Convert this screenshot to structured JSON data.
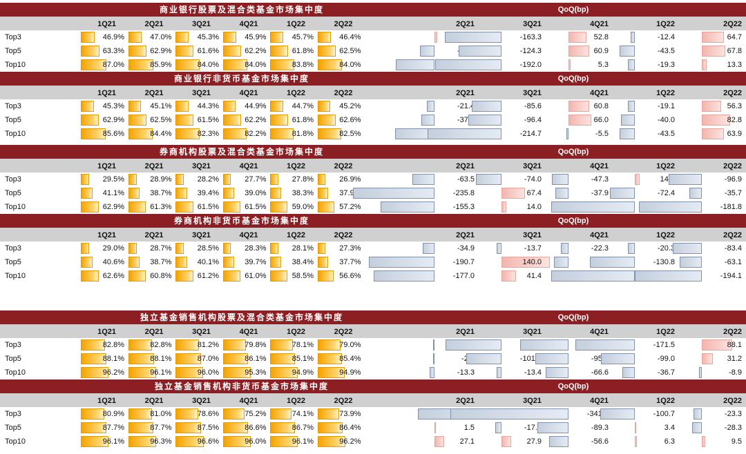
{
  "colors": {
    "title_band": "#8b1f24",
    "header_band": "#d0d0d0",
    "share_bar": "#f4a300",
    "qoq_negative": "#c4cfdd",
    "qoq_positive": "#f2b6ae"
  },
  "chart_data": [
    {
      "type": "table",
      "title": "商业银行股票及混合类基金市场集中度",
      "qoq_title": "QoQ(bp)",
      "periods": [
        "1Q21",
        "2Q21",
        "3Q21",
        "4Q21",
        "1Q22",
        "2Q22"
      ],
      "qoq_periods": [
        "2Q21",
        "3Q21",
        "4Q21",
        "1Q22",
        "2Q22"
      ],
      "rows": [
        {
          "label": "Top3",
          "values": [
            46.9,
            47.0,
            45.3,
            45.9,
            45.7,
            46.4
          ],
          "texts": [
            "46.9%",
            "47.0%",
            "45.3%",
            "45.9%",
            "45.7%",
            "46.4%"
          ],
          "qoq": [
            8.5,
            -163.3,
            52.8,
            -12.4,
            64.7
          ],
          "qoq_texts": [
            "8.5",
            "-163.3",
            "52.8",
            "-12.4",
            "64.7"
          ]
        },
        {
          "label": "Top5",
          "values": [
            63.3,
            62.9,
            61.6,
            62.2,
            61.8,
            62.5
          ],
          "texts": [
            "63.3%",
            "62.9%",
            "61.6%",
            "62.2%",
            "61.8%",
            "62.5%"
          ],
          "qoq": [
            -42.4,
            -124.3,
            60.9,
            -43.5,
            67.8
          ],
          "qoq_texts": [
            "-42.4",
            "-124.3",
            "60.9",
            "-43.5",
            "67.8"
          ]
        },
        {
          "label": "Top10",
          "values": [
            87.0,
            85.9,
            84.0,
            84.0,
            83.8,
            84.0
          ],
          "texts": [
            "87.0%",
            "85.9%",
            "84.0%",
            "84.0%",
            "83.8%",
            "84.0%"
          ],
          "qoq": [
            -113.0,
            -192.0,
            5.3,
            -19.3,
            13.3
          ],
          "qoq_texts": [
            "-113.0",
            "-192.0",
            "5.3",
            "-19.3",
            "13.3"
          ]
        }
      ]
    },
    {
      "type": "table",
      "title": "商业银行非货币基金市场集中度",
      "qoq_title": "QoQ(bp)",
      "periods": [
        "1Q21",
        "2Q21",
        "3Q21",
        "4Q21",
        "1Q22",
        "2Q22"
      ],
      "qoq_periods": [
        "2Q21",
        "3Q21",
        "4Q21",
        "1Q22",
        "2Q22"
      ],
      "rows": [
        {
          "label": "Top3",
          "values": [
            45.3,
            45.1,
            44.3,
            44.9,
            44.7,
            45.2
          ],
          "texts": [
            "45.3%",
            "45.1%",
            "44.3%",
            "44.9%",
            "44.7%",
            "45.2%"
          ],
          "qoq": [
            -21.4,
            -85.6,
            60.8,
            -19.1,
            56.3
          ],
          "qoq_texts": [
            "-21.4",
            "-85.6",
            "60.8",
            "-19.1",
            "56.3"
          ]
        },
        {
          "label": "Top5",
          "values": [
            62.9,
            62.5,
            61.5,
            62.2,
            61.8,
            62.6
          ],
          "texts": [
            "62.9%",
            "62.5%",
            "61.5%",
            "62.2%",
            "61.8%",
            "62.6%"
          ],
          "qoq": [
            -37.9,
            -96.4,
            66.0,
            -40.0,
            82.8
          ],
          "qoq_texts": [
            "-37.9",
            "-96.4",
            "66.0",
            "-40.0",
            "82.8"
          ]
        },
        {
          "label": "Top10",
          "values": [
            85.6,
            84.4,
            82.3,
            82.2,
            81.8,
            82.5
          ],
          "texts": [
            "85.6%",
            "84.4%",
            "82.3%",
            "82.2%",
            "81.8%",
            "82.5%"
          ],
          "qoq": [
            -113.7,
            -214.7,
            -5.5,
            -43.5,
            63.9
          ],
          "qoq_texts": [
            "-113.7",
            "-214.7",
            "-5.5",
            "-43.5",
            "63.9"
          ]
        }
      ]
    },
    {
      "type": "table",
      "title": "券商机构股票及混合类基金市场集中度",
      "qoq_title": "QoQ(bp)",
      "periods": [
        "1Q21",
        "2Q21",
        "3Q21",
        "4Q21",
        "1Q22",
        "2Q22"
      ],
      "qoq_periods": [
        "2Q21",
        "3Q21",
        "4Q21",
        "1Q22",
        "2Q22"
      ],
      "rows": [
        {
          "label": "Top3",
          "values": [
            29.5,
            28.9,
            28.2,
            27.7,
            27.8,
            26.9
          ],
          "texts": [
            "29.5%",
            "28.9%",
            "28.2%",
            "27.7%",
            "27.8%",
            "26.9%"
          ],
          "qoq": [
            -63.5,
            -74.0,
            -47.3,
            14.5,
            -96.9
          ],
          "qoq_texts": [
            "-63.5",
            "-74.0",
            "-47.3",
            "14.5",
            "-96.9"
          ]
        },
        {
          "label": "Top5",
          "values": [
            41.1,
            38.7,
            39.4,
            39.0,
            38.3,
            37.9
          ],
          "texts": [
            "41.1%",
            "38.7%",
            "39.4%",
            "39.0%",
            "38.3%",
            "37.9%"
          ],
          "qoq": [
            -235.8,
            67.4,
            -37.9,
            -72.4,
            -35.7
          ],
          "qoq_texts": [
            "-235.8",
            "67.4",
            "-37.9",
            "-72.4",
            "-35.7"
          ]
        },
        {
          "label": "Top10",
          "values": [
            62.9,
            61.3,
            61.5,
            61.5,
            59.0,
            57.2
          ],
          "texts": [
            "62.9%",
            "61.3%",
            "61.5%",
            "61.5%",
            "59.0%",
            "57.2%"
          ],
          "qoq": [
            -155.3,
            14.0,
            -1.2,
            -242.3,
            -181.8
          ],
          "qoq_texts": [
            "-155.3",
            "14.0",
            "-1.2",
            "-242.3",
            "-181.8"
          ]
        }
      ]
    },
    {
      "type": "table",
      "title": "券商机构非货币基金市场集中度",
      "qoq_title": "QoQ(bp)",
      "periods": [
        "1Q21",
        "2Q21",
        "3Q21",
        "4Q21",
        "1Q22",
        "2Q22"
      ],
      "qoq_periods": [
        "2Q21",
        "3Q21",
        "4Q21",
        "1Q22",
        "2Q22"
      ],
      "rows": [
        {
          "label": "Top3",
          "values": [
            29.0,
            28.7,
            28.5,
            28.3,
            28.1,
            27.3
          ],
          "texts": [
            "29.0%",
            "28.7%",
            "28.5%",
            "28.3%",
            "28.1%",
            "27.3%"
          ],
          "qoq": [
            -34.9,
            -13.7,
            -22.3,
            -20.3,
            -83.4
          ],
          "qoq_texts": [
            "-34.9",
            "-13.7",
            "-22.3",
            "-20.3",
            "-83.4"
          ]
        },
        {
          "label": "Top5",
          "values": [
            40.6,
            38.7,
            40.1,
            39.7,
            38.4,
            37.7
          ],
          "texts": [
            "40.6%",
            "38.7%",
            "40.1%",
            "39.7%",
            "38.4%",
            "37.7%"
          ],
          "qoq": [
            -190.7,
            140.0,
            -42.8,
            -130.8,
            -63.1
          ],
          "qoq_texts": [
            "-190.7",
            "140.0",
            "-42.8",
            "-130.8",
            "-63.1"
          ]
        },
        {
          "label": "Top10",
          "values": [
            62.6,
            60.8,
            61.2,
            61.0,
            58.5,
            56.6
          ],
          "texts": [
            "62.6%",
            "60.8%",
            "61.2%",
            "61.0%",
            "58.5%",
            "56.6%"
          ],
          "qoq": [
            -177.0,
            41.4,
            -24.1,
            -243.0,
            -194.1
          ],
          "qoq_texts": [
            "-177.0",
            "41.4",
            "-24.1",
            "-243.0",
            "-194.1"
          ]
        }
      ]
    },
    {
      "type": "table",
      "title": "独立基金销售机构股票及混合类基金市场集中度",
      "qoq_title": "QoQ(bp)",
      "periods": [
        "1Q21",
        "2Q21",
        "3Q21",
        "4Q21",
        "1Q22",
        "2Q22"
      ],
      "qoq_periods": [
        "2Q21",
        "3Q21",
        "4Q21",
        "1Q22",
        "2Q22"
      ],
      "rows": [
        {
          "label": "Top3",
          "values": [
            82.8,
            82.8,
            81.2,
            79.8,
            78.1,
            79.0
          ],
          "texts": [
            "82.8%",
            "82.8%",
            "81.2%",
            "79.8%",
            "78.1%",
            "79.0%"
          ],
          "qoq": [
            -0.8,
            -162.9,
            -140.5,
            -171.5,
            88.1
          ],
          "qoq_texts": [
            "-0.8",
            "-162.9",
            "-140.5",
            "-171.5",
            "88.1"
          ]
        },
        {
          "label": "Top5",
          "values": [
            88.1,
            88.1,
            87.0,
            86.1,
            85.1,
            85.4
          ],
          "texts": [
            "88.1%",
            "88.1%",
            "87.0%",
            "86.1%",
            "85.1%",
            "85.4%"
          ],
          "qoq": [
            -2.6,
            -101.6,
            -95.8,
            -99.0,
            31.2
          ],
          "qoq_texts": [
            "-2.6",
            "-101.6",
            "-95.8",
            "-99.0",
            "31.2"
          ]
        },
        {
          "label": "Top10",
          "values": [
            96.2,
            96.1,
            96.0,
            95.3,
            94.9,
            94.9
          ],
          "texts": [
            "96.2%",
            "96.1%",
            "96.0%",
            "95.3%",
            "94.9%",
            "94.9%"
          ],
          "qoq": [
            -13.3,
            -13.4,
            -66.6,
            -36.7,
            -8.9
          ],
          "qoq_texts": [
            "-13.3",
            "-13.4",
            "-66.6",
            "-36.7",
            "-8.9"
          ]
        }
      ]
    },
    {
      "type": "table",
      "title": "独立基金销售机构非货币基金市场集中度",
      "qoq_title": "QoQ(bp)",
      "periods": [
        "1Q21",
        "2Q21",
        "3Q21",
        "4Q21",
        "1Q22",
        "2Q22"
      ],
      "qoq_periods": [
        "2Q21",
        "3Q21",
        "4Q21",
        "1Q22",
        "2Q22"
      ],
      "rows": [
        {
          "label": "Top3",
          "values": [
            80.9,
            81.0,
            78.6,
            75.2,
            74.1,
            73.9
          ],
          "texts": [
            "80.9%",
            "81.0%",
            "78.6%",
            "75.2%",
            "74.1%",
            "73.9%"
          ],
          "qoq": [
            3.1,
            -241.2,
            -341.4,
            -100.7,
            -23.3
          ],
          "qoq_texts": [
            "3.1",
            "-241.2",
            "-341.4",
            "-100.7",
            "-23.3"
          ]
        },
        {
          "label": "Top5",
          "values": [
            87.7,
            87.7,
            87.5,
            86.6,
            86.7,
            86.4
          ],
          "texts": [
            "87.7%",
            "87.7%",
            "87.5%",
            "86.6%",
            "86.7%",
            "86.4%"
          ],
          "qoq": [
            1.5,
            -17.6,
            -89.3,
            3.4,
            -28.3
          ],
          "qoq_texts": [
            "1.5",
            "-17.6",
            "-89.3",
            "3.4",
            "-28.3"
          ]
        },
        {
          "label": "Top10",
          "values": [
            96.1,
            96.3,
            96.6,
            96.0,
            96.1,
            96.2
          ],
          "texts": [
            "96.1%",
            "96.3%",
            "96.6%",
            "96.0%",
            "96.1%",
            "96.2%"
          ],
          "qoq": [
            27.1,
            27.9,
            -56.6,
            6.3,
            9.5
          ],
          "qoq_texts": [
            "27.1",
            "27.9",
            "-56.6",
            "6.3",
            "9.5"
          ]
        }
      ]
    }
  ]
}
